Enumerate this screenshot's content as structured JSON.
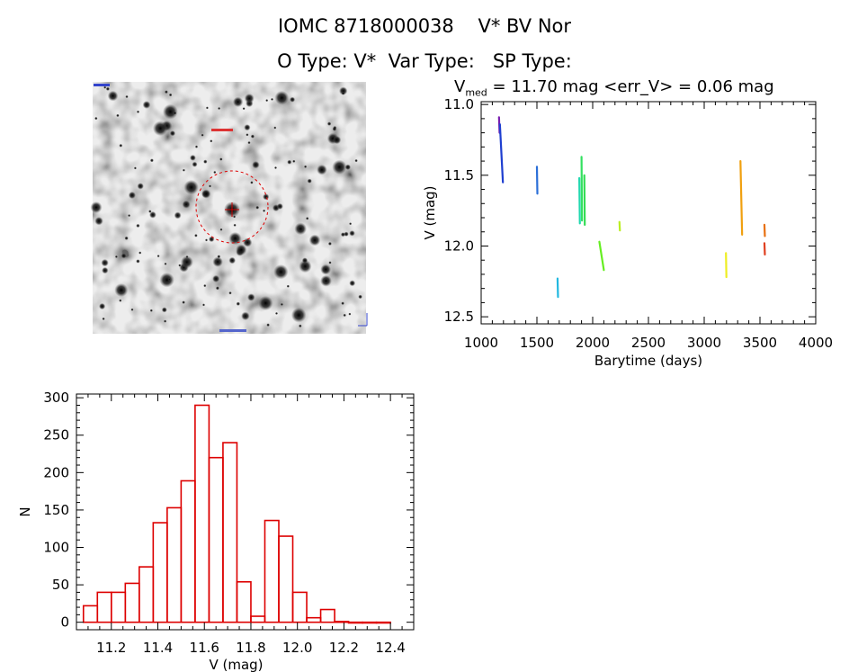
{
  "header": {
    "title_line1": "IOMC 8718000038    V* BV Nor",
    "title_line2": "O Type: V*  Var Type:   SP Type:"
  },
  "lightcurve_stats": {
    "label_v": "V",
    "label_sub": "med",
    "text": " = 11.70 mag <err_V> = 0.06 mag"
  },
  "colors": {
    "histogram_bar": "#dd0000",
    "aperture_circle": "#dd0000"
  },
  "chart_data": [
    {
      "type": "scatter",
      "name": "light-curve",
      "xlabel": "Barytime (days)",
      "ylabel": "V (mag)",
      "xlim": [
        1000,
        4000
      ],
      "ylim": [
        12.55,
        10.98
      ],
      "y_inverted": true,
      "x_ticks": [
        1000,
        1500,
        2000,
        2500,
        3000,
        3500,
        4000
      ],
      "y_ticks": [
        "11.0",
        "11.5",
        "12.0",
        "12.5"
      ],
      "y_tick_values": [
        11.0,
        11.5,
        12.0,
        12.5
      ],
      "segments": [
        {
          "x_start": 1160,
          "x_end": 1165,
          "y_top": 11.09,
          "y_bottom": 11.2,
          "color": "#7a1fb0"
        },
        {
          "x_start": 1168,
          "x_end": 1195,
          "y_top": 11.14,
          "y_bottom": 11.55,
          "color": "#1f3fd0"
        },
        {
          "x_start": 1500,
          "x_end": 1502,
          "y_top": 11.44,
          "y_bottom": 11.63,
          "color": "#2b6fd8"
        },
        {
          "x_start": 1685,
          "x_end": 1687,
          "y_top": 12.23,
          "y_bottom": 12.36,
          "color": "#22b8e0"
        },
        {
          "x_start": 1880,
          "x_end": 1885,
          "y_top": 11.52,
          "y_bottom": 11.84,
          "color": "#22d8b0"
        },
        {
          "x_start": 1900,
          "x_end": 1903,
          "y_top": 11.37,
          "y_bottom": 11.82,
          "color": "#33e060"
        },
        {
          "x_start": 1925,
          "x_end": 1928,
          "y_top": 11.5,
          "y_bottom": 11.85,
          "color": "#33dd55"
        },
        {
          "x_start": 2060,
          "x_end": 2100,
          "y_top": 11.97,
          "y_bottom": 12.17,
          "color": "#66ee22"
        },
        {
          "x_start": 2240,
          "x_end": 2242,
          "y_top": 11.83,
          "y_bottom": 11.89,
          "color": "#bbee22"
        },
        {
          "x_start": 3195,
          "x_end": 3197,
          "y_top": 12.05,
          "y_bottom": 12.22,
          "color": "#eeee22"
        },
        {
          "x_start": 3325,
          "x_end": 3340,
          "y_top": 11.4,
          "y_bottom": 11.92,
          "color": "#f0a010"
        },
        {
          "x_start": 3540,
          "x_end": 3542,
          "y_top": 11.85,
          "y_bottom": 11.93,
          "color": "#e87010"
        },
        {
          "x_start": 3540,
          "x_end": 3542,
          "y_top": 11.98,
          "y_bottom": 12.06,
          "color": "#e04020"
        }
      ]
    },
    {
      "type": "bar",
      "name": "histogram",
      "xlabel": "V (mag)",
      "ylabel": "N",
      "xlim": [
        11.05,
        12.5
      ],
      "ylim": [
        -10,
        305
      ],
      "x_ticks": [
        "11.2",
        "11.4",
        "11.6",
        "11.8",
        "12.0",
        "12.2",
        "12.4"
      ],
      "x_tick_values": [
        11.2,
        11.4,
        11.6,
        11.8,
        12.0,
        12.2,
        12.4
      ],
      "y_ticks": [
        "0",
        "50",
        "100",
        "150",
        "200",
        "250",
        "300"
      ],
      "y_tick_values": [
        0,
        50,
        100,
        150,
        200,
        250,
        300
      ],
      "bin_width": 0.06,
      "bin_starts": [
        11.08,
        11.14,
        11.2,
        11.26,
        11.32,
        11.38,
        11.44,
        11.5,
        11.56,
        11.62,
        11.68,
        11.74,
        11.8,
        11.86,
        11.92,
        11.98,
        12.04,
        12.1,
        12.16,
        12.22,
        12.28,
        12.34
      ],
      "values": [
        22,
        40,
        40,
        52,
        74,
        133,
        153,
        189,
        290,
        220,
        240,
        54,
        8,
        136,
        115,
        40,
        6,
        17,
        1,
        0,
        0,
        0
      ]
    }
  ]
}
